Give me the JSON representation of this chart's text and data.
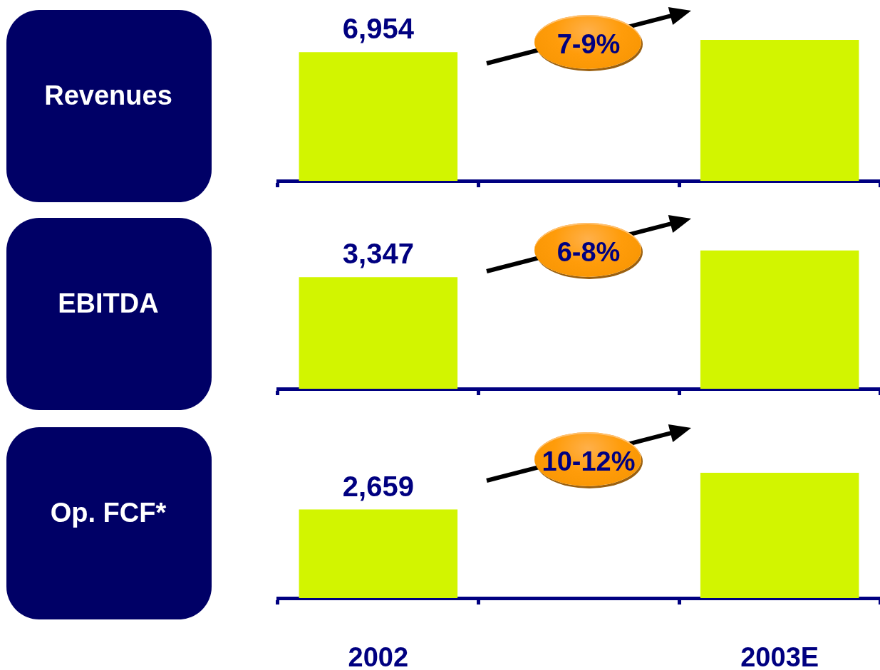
{
  "chart_data": [
    {
      "type": "bar",
      "title": "Revenues",
      "categories": [
        "2002",
        null,
        "2003E"
      ],
      "values": [
        6954,
        null,
        7620
      ],
      "value_labels": [
        "6,954",
        null,
        null
      ],
      "color": "#d2f500",
      "ylim": [
        0,
        9000
      ],
      "annotations": [
        "7-9%"
      ],
      "tick_labels": false
    },
    {
      "type": "bar",
      "title": "EBITDA",
      "categories": [
        "2002",
        null,
        "2003E"
      ],
      "values": [
        3347,
        null,
        4150
      ],
      "value_labels": [
        "3,347",
        null,
        null
      ],
      "color": "#d2f500",
      "ylim": [
        0,
        5000
      ],
      "annotations": [
        "6-8%"
      ],
      "tick_labels": false
    },
    {
      "type": "bar",
      "title": "Op. FCF*",
      "categories": [
        "2002",
        null,
        "2003E"
      ],
      "values": [
        2659,
        null,
        3760
      ],
      "value_labels": [
        "2,659",
        null,
        null
      ],
      "color": "#d2f500",
      "ylim": [
        0,
        5000
      ],
      "annotations": [
        "10-12%"
      ],
      "tick_labels": "x"
    }
  ]
}
